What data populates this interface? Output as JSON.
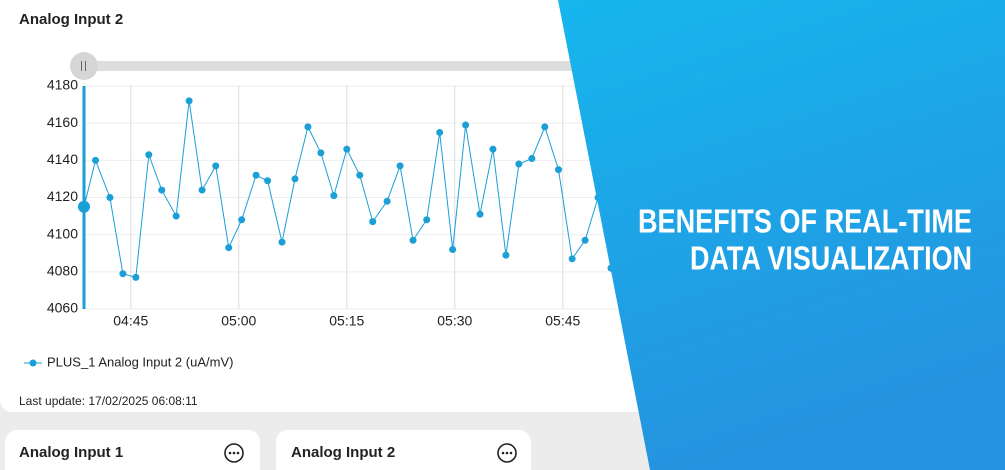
{
  "chart_data": {
    "type": "line",
    "title": "Analog Input 2",
    "x": [
      278.5,
      280.1,
      282.1,
      283.9,
      285.7,
      287.5,
      289.3,
      291.3,
      293.1,
      294.9,
      296.8,
      298.6,
      300.4,
      302.4,
      304.0,
      306.0,
      307.8,
      309.6,
      311.4,
      313.2,
      315.0,
      316.8,
      318.6,
      320.6,
      322.4,
      324.2,
      326.1,
      327.9,
      329.7,
      331.5,
      333.5,
      335.3,
      337.1,
      338.9,
      340.7,
      342.5,
      344.4,
      346.3,
      348.1,
      349.9,
      351.7
    ],
    "series": [
      {
        "name": "PLUS_1 Analog Input 2 (uA/mV)",
        "color": "#1a9fd6",
        "values": [
          4115,
          4140,
          4120,
          4079,
          4077,
          4143,
          4124,
          4110,
          4172,
          4124,
          4137,
          4093,
          4108,
          4132,
          4129,
          4096,
          4130,
          4158,
          4144,
          4121,
          4146,
          4132,
          4107,
          4118,
          4137,
          4097,
          4108,
          4155,
          4092,
          4159,
          4111,
          4146,
          4089,
          4138,
          4141,
          4158,
          4135,
          4087,
          4097,
          4120,
          4082
        ]
      }
    ],
    "xlim": [
      278.5,
      353
    ],
    "xticks": [
      {
        "value": 285,
        "label": "04:45"
      },
      {
        "value": 300,
        "label": "05:00"
      },
      {
        "value": 315,
        "label": "05:15"
      },
      {
        "value": 330,
        "label": "05:30"
      },
      {
        "value": 345,
        "label": "05:45"
      }
    ],
    "ylim": [
      4060,
      4180
    ],
    "yticks": [
      4060,
      4080,
      4100,
      4120,
      4140,
      4160,
      4180
    ],
    "grid": true
  },
  "last_update": "Last update: 17/02/2025 06:08:11",
  "cards": [
    {
      "title": "Analog Input 1"
    },
    {
      "title": "Analog Input 2"
    }
  ],
  "banner": {
    "lines": [
      "BENEFITS OF REAL-TIME",
      "DATA VISUALIZATION"
    ]
  }
}
